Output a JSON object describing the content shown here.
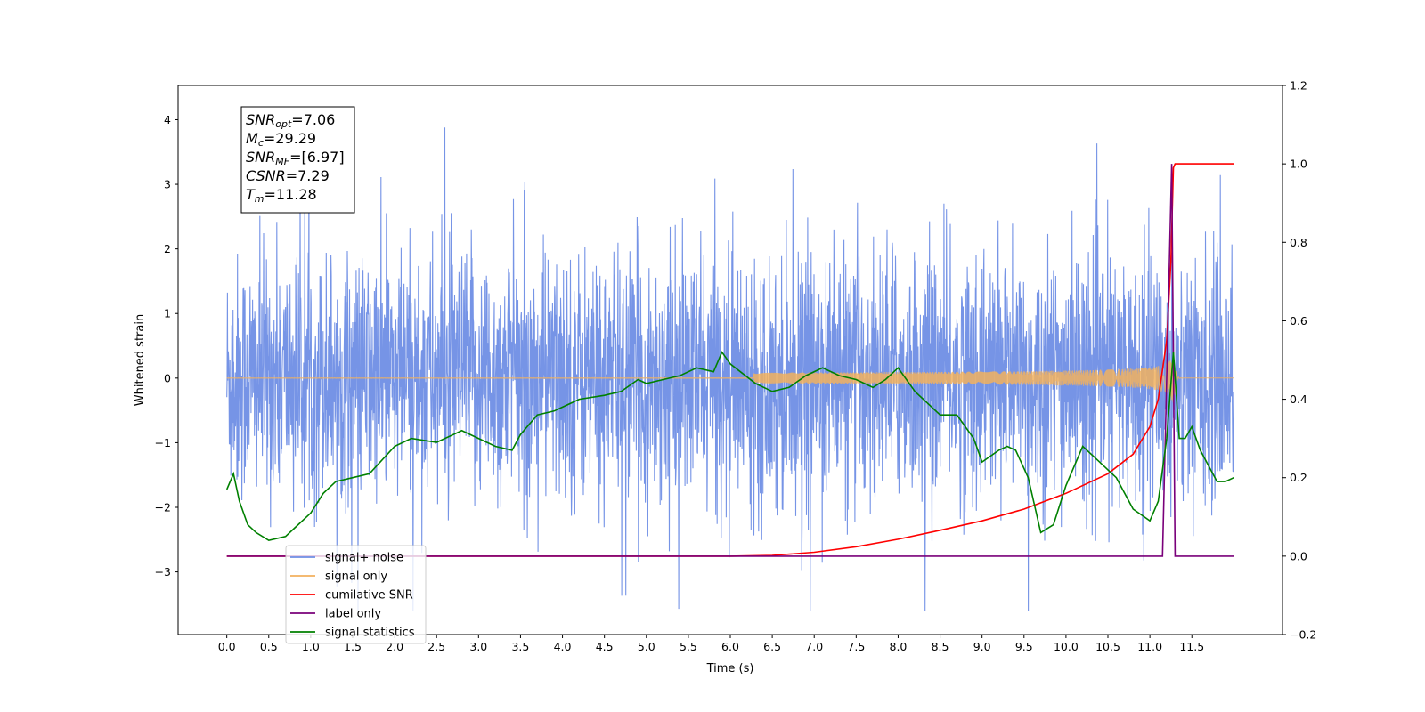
{
  "chart_data": {
    "type": "line",
    "xlabel": "Time (s)",
    "ylabel": "Whitened strain",
    "xlim": [
      -0.58,
      12.58
    ],
    "ylim": [
      -3.97,
      4.53
    ],
    "y2lim": [
      -0.2,
      1.2
    ],
    "x_ticks": [
      "0.0",
      "0.5",
      "1.0",
      "1.5",
      "2.0",
      "2.5",
      "3.0",
      "3.5",
      "4.0",
      "4.5",
      "5.0",
      "5.5",
      "6.0",
      "6.5",
      "7.0",
      "7.5",
      "8.0",
      "8.5",
      "9.0",
      "9.5",
      "10.0",
      "10.5",
      "11.0",
      "11.5"
    ],
    "y_ticks": [
      "4",
      "3",
      "2",
      "1",
      "0",
      "−1",
      "−2",
      "−3"
    ],
    "y2_ticks": [
      "1.2",
      "1.0",
      "0.8",
      "0.6",
      "0.4",
      "0.2",
      "0.0",
      "−0.2"
    ],
    "grid": false,
    "legend_position": "lower-left",
    "info_box": {
      "lines": [
        {
          "main": "SNR",
          "sub": "opt",
          "value": "=7.06"
        },
        {
          "main": "M",
          "sub": "c",
          "value": "=29.29"
        },
        {
          "main": "SNR",
          "sub": "MF",
          "value": "=[6.97]"
        },
        {
          "main": "CSNR",
          "sub": "",
          "value": "=7.29"
        },
        {
          "main": "T",
          "sub": "m",
          "value": "=11.28"
        }
      ]
    },
    "series": [
      {
        "name": "signal+ noise",
        "color": "#6f8ee5",
        "axis": "left",
        "kind": "noise",
        "envelope": {
          "duration": 12.0,
          "max_peak": 3.88,
          "min_peak": -3.6,
          "typical_range": [
            -1.6,
            1.6
          ]
        }
      },
      {
        "name": "signal only",
        "color": "#f2b15e",
        "axis": "left",
        "kind": "chirp",
        "envelope": {
          "t_merge": 11.28,
          "peak_amplitude": 0.6
        }
      },
      {
        "name": "cumilative SNR",
        "color": "#ff0000",
        "axis": "right",
        "x": [
          0,
          6.0,
          6.5,
          7.0,
          7.5,
          8.0,
          8.5,
          9.0,
          9.5,
          10.0,
          10.5,
          10.8,
          11.0,
          11.1,
          11.2,
          11.25,
          11.28,
          11.3,
          12.0
        ],
        "y": [
          0,
          0,
          0.002,
          0.01,
          0.024,
          0.043,
          0.066,
          0.09,
          0.12,
          0.16,
          0.21,
          0.26,
          0.33,
          0.4,
          0.55,
          0.75,
          0.99,
          1.0,
          1.0
        ]
      },
      {
        "name": "label only",
        "color": "#7a007a",
        "axis": "right",
        "x": [
          0,
          11.15,
          11.26,
          11.3,
          11.35,
          12.0
        ],
        "y": [
          0,
          0,
          1.0,
          0,
          0,
          0
        ]
      },
      {
        "name": "signal statistics",
        "color": "#008000",
        "axis": "right",
        "x": [
          0.0,
          0.08,
          0.15,
          0.25,
          0.35,
          0.5,
          0.7,
          0.8,
          1.0,
          1.15,
          1.3,
          1.5,
          1.7,
          2.0,
          2.2,
          2.5,
          2.8,
          3.0,
          3.2,
          3.4,
          3.5,
          3.7,
          3.9,
          4.0,
          4.2,
          4.5,
          4.7,
          4.9,
          5.0,
          5.2,
          5.4,
          5.6,
          5.8,
          5.9,
          6.0,
          6.3,
          6.5,
          6.7,
          6.9,
          7.1,
          7.3,
          7.5,
          7.7,
          7.85,
          8.0,
          8.2,
          8.5,
          8.7,
          8.9,
          9.0,
          9.2,
          9.3,
          9.4,
          9.55,
          9.7,
          9.85,
          10.0,
          10.2,
          10.4,
          10.5,
          10.6,
          10.8,
          11.0,
          11.1,
          11.2,
          11.28,
          11.35,
          11.42,
          11.5,
          11.6,
          11.7,
          11.8,
          11.9,
          12.0
        ],
        "y": [
          0.17,
          0.21,
          0.14,
          0.08,
          0.06,
          0.04,
          0.05,
          0.07,
          0.11,
          0.16,
          0.19,
          0.2,
          0.21,
          0.28,
          0.3,
          0.29,
          0.32,
          0.3,
          0.28,
          0.27,
          0.31,
          0.36,
          0.37,
          0.38,
          0.4,
          0.41,
          0.42,
          0.45,
          0.44,
          0.45,
          0.46,
          0.48,
          0.47,
          0.52,
          0.49,
          0.44,
          0.42,
          0.43,
          0.46,
          0.48,
          0.46,
          0.45,
          0.43,
          0.45,
          0.48,
          0.42,
          0.36,
          0.36,
          0.3,
          0.24,
          0.27,
          0.28,
          0.27,
          0.2,
          0.06,
          0.08,
          0.18,
          0.28,
          0.24,
          0.22,
          0.2,
          0.12,
          0.09,
          0.14,
          0.3,
          0.52,
          0.3,
          0.3,
          0.33,
          0.27,
          0.23,
          0.19,
          0.19,
          0.2
        ]
      }
    ]
  }
}
